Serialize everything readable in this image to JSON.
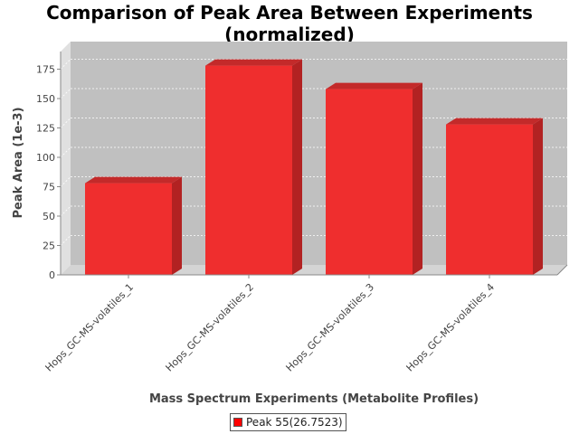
{
  "chart_data": {
    "type": "bar",
    "title_line1": "Comparison of Peak Area Between Experiments",
    "title_line2": "(normalized)",
    "xlabel": "Mass Spectrum Experiments (Metabolite Profiles)",
    "ylabel": "Peak Area (1e-3)",
    "categories": [
      "Hops_GC-MS-volatiles_1",
      "Hops_GC-MS-volatiles_2",
      "Hops_GC-MS-volatiles_3",
      "Hops_GC-MS-volatiles_4"
    ],
    "series": [
      {
        "name": "Peak 55(26.7523)",
        "values": [
          78,
          178,
          158,
          128
        ]
      }
    ],
    "ylim": [
      0,
      190
    ],
    "yticks": [
      0,
      25,
      50,
      75,
      100,
      125,
      150,
      175
    ],
    "grid": true,
    "legend_position": "bottom-center",
    "colors": {
      "bar": "#ff0000",
      "plot_bg": "#c0c0c0",
      "grid": "#ffffff"
    }
  }
}
